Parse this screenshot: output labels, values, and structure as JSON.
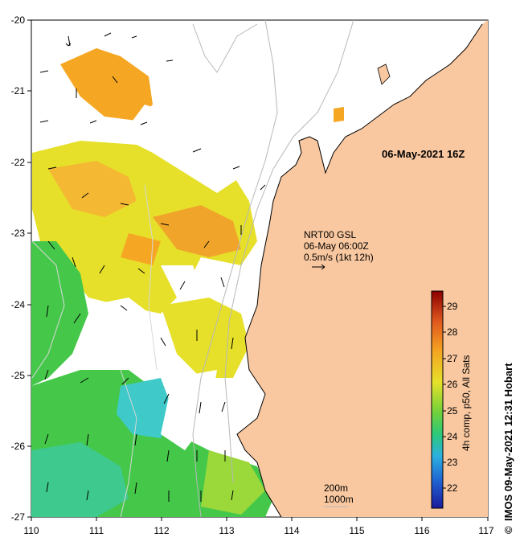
{
  "map": {
    "timestamp": "06-May-2021 16Z",
    "current_model": {
      "line1": "NRT00 GSL",
      "line2": "06-May 06:00Z",
      "line3": "0.5m/s (1kt 12h)"
    },
    "isobath_labels": [
      "200m",
      "1000m"
    ],
    "x_axis": {
      "ticks": [
        "110",
        "111",
        "112",
        "113",
        "114",
        "115",
        "116",
        "117"
      ],
      "range": [
        110,
        117
      ]
    },
    "y_axis": {
      "ticks": [
        "-20",
        "-21",
        "-22",
        "-23",
        "-24",
        "-25",
        "-26",
        "-27"
      ],
      "range": [
        -27,
        -20
      ]
    },
    "colors": {
      "land": "#f9c8a0",
      "orange": "#f5a623",
      "yellow": "#e6e02a",
      "green": "#45c84a",
      "cyan": "#3fc9c9",
      "blue": "#1a2fb0",
      "contour": "#b8b8b8"
    }
  },
  "colorbar": {
    "label": "4h comp, p50, All Sats",
    "ticks": [
      "29",
      "28",
      "27",
      "26",
      "25",
      "24",
      "23",
      "22"
    ],
    "range": [
      21.3,
      29.6
    ],
    "stops": [
      "#8b0000",
      "#e0581e",
      "#f5a623",
      "#e6e02a",
      "#6fd13a",
      "#2cc97a",
      "#2cb0e0",
      "#1f5fd0",
      "#1a1a9a"
    ]
  },
  "credit": {
    "symbol": "©",
    "text": "IMOS 09-May-2021 12:31 Hobart"
  }
}
